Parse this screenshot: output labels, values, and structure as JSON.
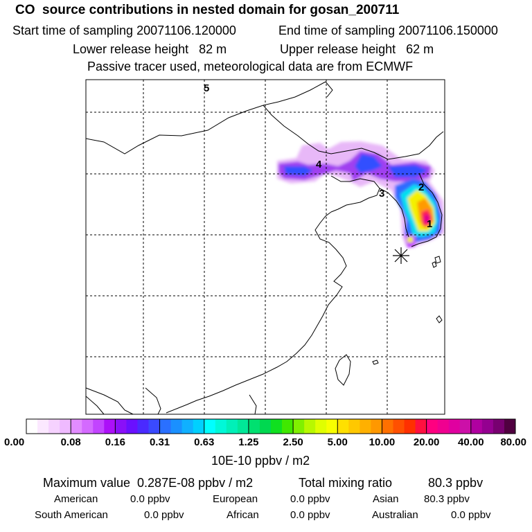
{
  "header": {
    "title": "CO  source contributions in nested domain for gosan_200711",
    "start_label": "Start time of sampling 20071106.120000",
    "end_label": "End time of sampling 20071106.150000",
    "lower_label": "Lower release height   82 m",
    "upper_label": "Upper release height   62 m",
    "note": "Passive tracer used, meteorological data are from ECMWF"
  },
  "map": {
    "markers": [
      "5",
      "4",
      "3",
      "2",
      "1"
    ],
    "receptor": "gosan",
    "colors": {
      "plume_light": "#e8b0f8",
      "plume_purple": "#9b30f0",
      "plume_blue": "#3060ff",
      "plume_cyan": "#00e8e8",
      "plume_yellow": "#f0f000",
      "plume_red": "#ff2040",
      "plume_magenta": "#e00090"
    }
  },
  "colorbar": {
    "ticks": [
      "0.00",
      "0.08",
      "0.16",
      "0.31",
      "0.63",
      "1.25",
      "2.50",
      "5.00",
      "10.00",
      "20.00",
      "40.00",
      "80.00"
    ],
    "unit": "10E-10 ppbv / m2",
    "colors": [
      "#ffffff",
      "#fbe8ff",
      "#f6d2ff",
      "#efbaff",
      "#e28cff",
      "#d46aff",
      "#c244ff",
      "#ac10f8",
      "#8a10f8",
      "#6a10ff",
      "#4a2aff",
      "#3a4aff",
      "#2a70ff",
      "#1a90ff",
      "#10b0ff",
      "#00d0ff",
      "#00ffff",
      "#00f8d8",
      "#00f0b8",
      "#00e898",
      "#00e070",
      "#00d850",
      "#10e020",
      "#40e800",
      "#80f000",
      "#b8f800",
      "#e0ff00",
      "#f8ff00",
      "#ffe000",
      "#ffc800",
      "#ffb000",
      "#ff9800",
      "#ff7000",
      "#ff5000",
      "#ff3000",
      "#ff1040",
      "#ff0080",
      "#f00090",
      "#e000a0",
      "#cc10a8",
      "#b000a0",
      "#940090",
      "#780070",
      "#500040"
    ]
  },
  "summary": {
    "max_label": "Maximum value  0.287E-08 ppbv / m2",
    "total_label": "Total mixing ratio",
    "total_value": "80.3 ppbv",
    "american_label": "American",
    "american_value": "0.0 ppbv",
    "european_label": "European",
    "european_value": "0.0 ppbv",
    "asian_label": "Asian",
    "asian_value": "80.3 ppbv",
    "south_american_label": "South American",
    "south_american_value": "0.0 ppbv",
    "african_label": "African",
    "african_value": "0.0 ppbv",
    "australian_label": "Australian",
    "australian_value": "0.0 ppbv"
  }
}
